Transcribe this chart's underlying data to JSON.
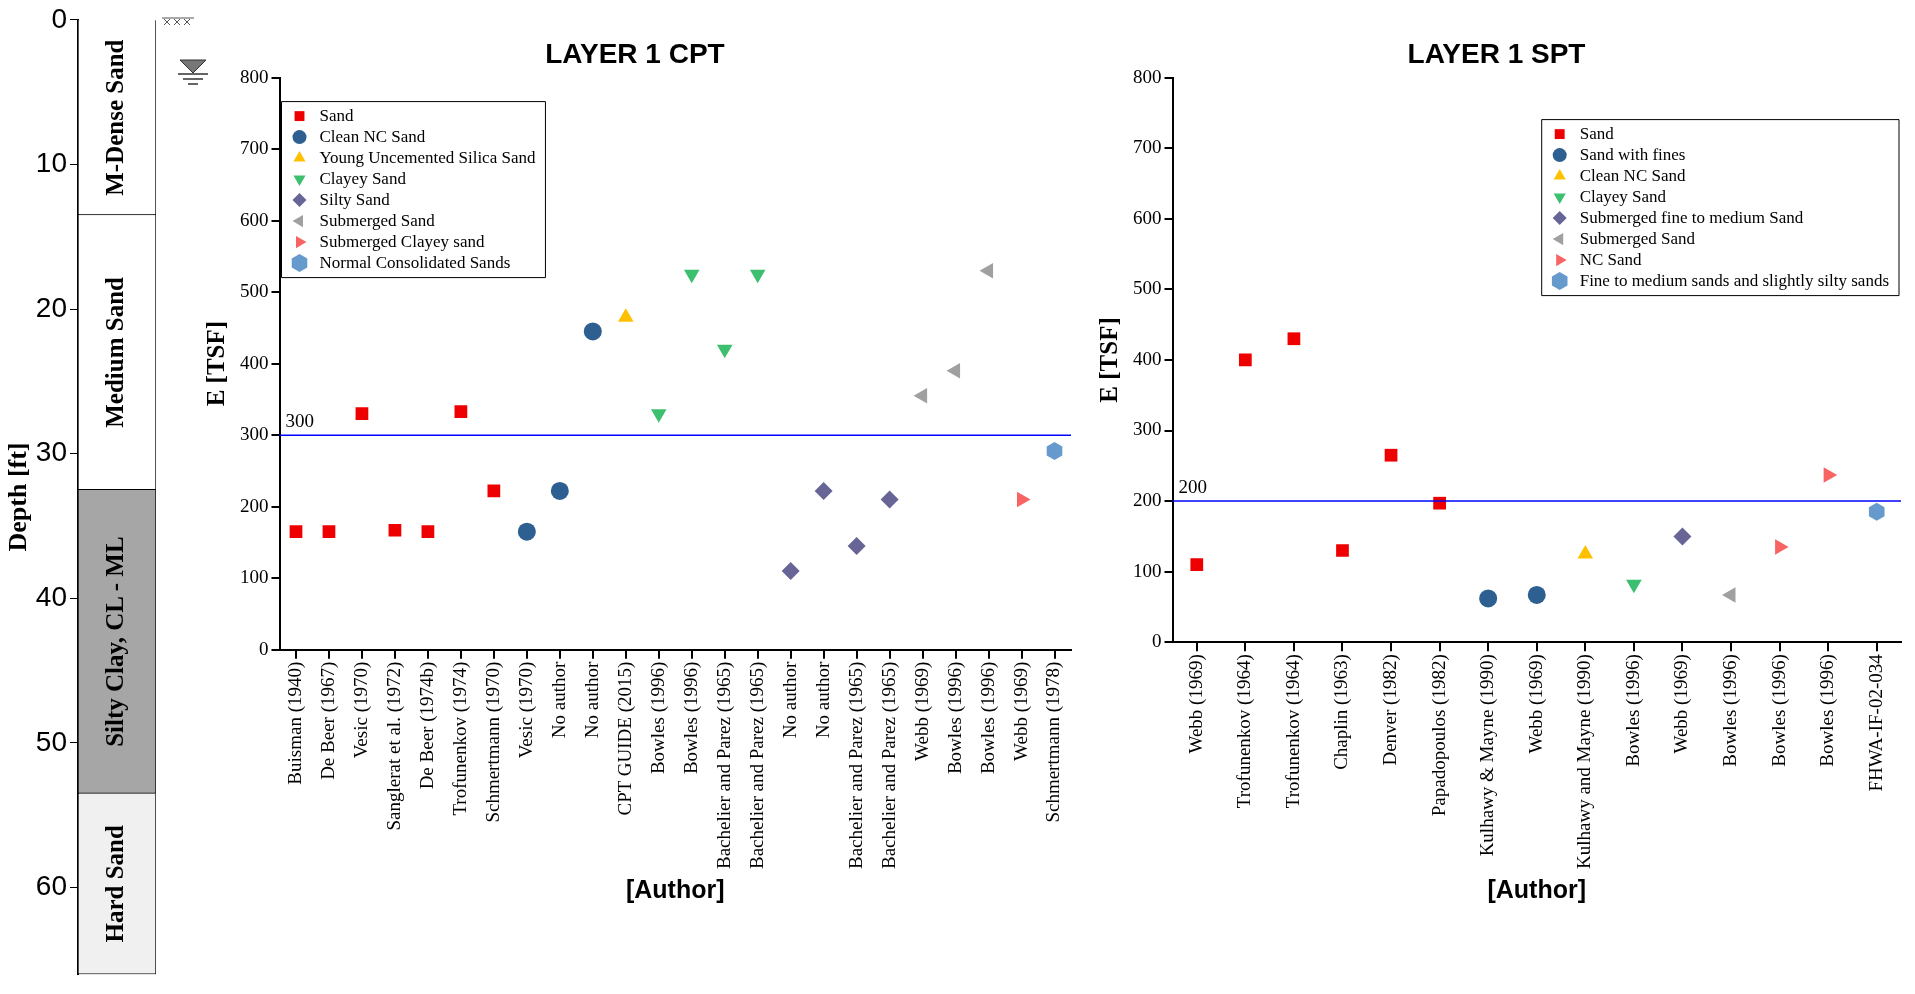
{
  "chart_data": [
    {
      "type": "bar",
      "stacked": true,
      "categories": [
        null
      ],
      "ylabel": "Depth [ft]",
      "ylim": [
        66,
        0
      ],
      "yticks": [
        0,
        10,
        20,
        30,
        40,
        50,
        60
      ],
      "legend": false,
      "series": [
        {
          "name": "M-Dense Sand",
          "color": "#ffffff",
          "values": [
            13.5
          ]
        },
        {
          "name": "Medium Sand",
          "color": "#ffffff",
          "values": [
            19
          ]
        },
        {
          "name": "Silty Clay, CL - ML",
          "color": "#a6a6a6",
          "values": [
            21
          ]
        },
        {
          "name": "Hard Sand",
          "color": "#f0f0f0",
          "values": [
            12.5
          ]
        }
      ]
    },
    {
      "type": "scatter",
      "title": "LAYER 1 CPT",
      "xlabel": "[Author]",
      "ylabel": "E [TSF]",
      "legend": "top left",
      "ylim": [
        0,
        800
      ],
      "yticks": [
        0,
        100,
        200,
        300,
        400,
        500,
        600,
        700,
        800
      ],
      "categories": [
        "Buisman (1940)",
        "De Beer (1967)",
        "Vesic (1970)",
        "Sanglerat et al. (1972)",
        "De Beer (1974b)",
        "Trofunenkov (1974)",
        "Schmertmann (1970)",
        "Vesic (1970)",
        "No author",
        "No author",
        "CPT GUIDE (2015)",
        "Bowles (1996)",
        "Bowles (1996)",
        "Bachelier and Parez (1965)",
        "Bachelier and Parez (1965)",
        "No author",
        "No author",
        "Bachelier and Parez (1965)",
        "Bachelier and Parez (1965)",
        "Webb (1969)",
        "Bowles (1996)",
        "Bowles (1996)",
        "Webb (1969)",
        "Schmertmann (1978)"
      ],
      "ref_lines": [
        {
          "axis": "y",
          "value": 300,
          "label": "300",
          "color": "#0000ff"
        }
      ],
      "series": [
        {
          "name": "Sand",
          "color": "#ee0000",
          "marker": "square",
          "values": [
            165,
            165,
            330,
            167,
            165,
            333,
            222,
            null,
            null,
            null,
            null,
            null,
            null,
            null,
            null,
            null,
            null,
            null,
            null,
            null,
            null,
            null,
            null,
            null
          ]
        },
        {
          "name": "Clean NC Sand",
          "color": "#2d5f91",
          "marker": "circle",
          "values": [
            null,
            null,
            null,
            null,
            null,
            null,
            null,
            165,
            222,
            445,
            null,
            null,
            null,
            null,
            null,
            null,
            null,
            null,
            null,
            null,
            null,
            null,
            null,
            null
          ]
        },
        {
          "name": "Young Uncemented Silica Sand",
          "color": "#ffc000",
          "marker": "triangle",
          "values": [
            null,
            null,
            null,
            null,
            null,
            null,
            null,
            null,
            null,
            null,
            465,
            null,
            null,
            null,
            null,
            null,
            null,
            null,
            null,
            null,
            null,
            null,
            null,
            null
          ]
        },
        {
          "name": "Clayey Sand",
          "color": "#3cbf6e",
          "marker": "triangle-down",
          "values": [
            null,
            null,
            null,
            null,
            null,
            null,
            null,
            null,
            null,
            null,
            null,
            330,
            525,
            420,
            525,
            null,
            null,
            null,
            null,
            null,
            null,
            null,
            null,
            null
          ]
        },
        {
          "name": "Silty Sand",
          "color": "#676496",
          "marker": "diamond",
          "values": [
            null,
            null,
            null,
            null,
            null,
            null,
            null,
            null,
            null,
            null,
            null,
            null,
            null,
            null,
            null,
            110,
            222,
            145,
            210,
            null,
            null,
            null,
            null,
            null
          ]
        },
        {
          "name": "Submerged Sand",
          "color": "#a0a0a0",
          "marker": "triangle-left",
          "values": [
            null,
            null,
            null,
            null,
            null,
            null,
            null,
            null,
            null,
            null,
            null,
            null,
            null,
            null,
            null,
            null,
            null,
            null,
            null,
            355,
            390,
            530,
            null,
            null
          ]
        },
        {
          "name": "Submerged Clayey sand",
          "color": "#f86464",
          "marker": "triangle-right",
          "values": [
            null,
            null,
            null,
            null,
            null,
            null,
            null,
            null,
            null,
            null,
            null,
            null,
            null,
            null,
            null,
            null,
            null,
            null,
            null,
            null,
            null,
            null,
            210,
            null
          ]
        },
        {
          "name": "Normal Consolidated Sands",
          "color": "#6699cc",
          "values": [
            null,
            null,
            null,
            null,
            null,
            null,
            null,
            null,
            null,
            null,
            null,
            null,
            null,
            null,
            null,
            null,
            null,
            null,
            null,
            null,
            null,
            null,
            null,
            278
          ]
        }
      ]
    },
    {
      "type": "scatter",
      "title": "LAYER 1 SPT",
      "xlabel": "[Author]",
      "ylabel": "E [TSF]",
      "legend": "top right",
      "ylim": [
        0,
        800
      ],
      "yticks": [
        0,
        100,
        200,
        300,
        400,
        500,
        600,
        700,
        800
      ],
      "categories": [
        "Webb (1969)",
        "Trofunenkov (1964)",
        "Trofunenkov (1964)",
        "Chaplin (1963)",
        "Denver (1982)",
        "Papadopoulos (1982)",
        "Kulhawy & Mayne (1990)",
        "Webb (1969)",
        "Kulhawy and Mayne (1990)",
        "Bowles (1996)",
        "Webb (1969)",
        "Bowles (1996)",
        "Bowles (1996)",
        "Bowles (1996)",
        "FHWA-IF-02-034"
      ],
      "ref_lines": [
        {
          "axis": "y",
          "value": 200,
          "label": "200",
          "color": "#0000ff"
        }
      ],
      "series": [
        {
          "name": "Sand",
          "color": "#ee0000",
          "marker": "square",
          "values": [
            110,
            400,
            430,
            130,
            265,
            197,
            null,
            null,
            null,
            null,
            null,
            null,
            null,
            null,
            null
          ]
        },
        {
          "name": "Sand with fines",
          "color": "#2d5f91",
          "marker": "circle",
          "values": [
            null,
            null,
            null,
            null,
            null,
            null,
            62,
            67,
            null,
            null,
            null,
            null,
            null,
            null,
            null
          ]
        },
        {
          "name": "Clean NC Sand",
          "color": "#ffc000",
          "marker": "triangle",
          "values": [
            null,
            null,
            null,
            null,
            null,
            null,
            null,
            null,
            125,
            null,
            null,
            null,
            null,
            null,
            null
          ]
        },
        {
          "name": "Clayey Sand",
          "color": "#3cbf6e",
          "marker": "triangle-down",
          "values": [
            null,
            null,
            null,
            null,
            null,
            null,
            null,
            null,
            null,
            82,
            null,
            null,
            null,
            null,
            null
          ]
        },
        {
          "name": "Submerged fine to medium Sand",
          "color": "#676496",
          "marker": "diamond",
          "values": [
            null,
            null,
            null,
            null,
            null,
            null,
            null,
            null,
            null,
            null,
            150,
            null,
            null,
            null,
            null
          ]
        },
        {
          "name": "Submerged Sand",
          "color": "#a0a0a0",
          "marker": "triangle-left",
          "values": [
            null,
            null,
            null,
            null,
            null,
            null,
            null,
            null,
            null,
            null,
            null,
            67,
            null,
            null,
            null
          ]
        },
        {
          "name": "NC Sand",
          "color": "#f86464",
          "marker": "triangle-right",
          "values": [
            null,
            null,
            null,
            null,
            null,
            null,
            null,
            null,
            null,
            null,
            null,
            null,
            135,
            237,
            null
          ]
        },
        {
          "name": "Fine to medium sands and slightly silty sands",
          "color": "#6699cc",
          "values": [
            null,
            null,
            null,
            null,
            null,
            null,
            null,
            null,
            null,
            null,
            null,
            null,
            null,
            null,
            185
          ]
        }
      ]
    }
  ]
}
